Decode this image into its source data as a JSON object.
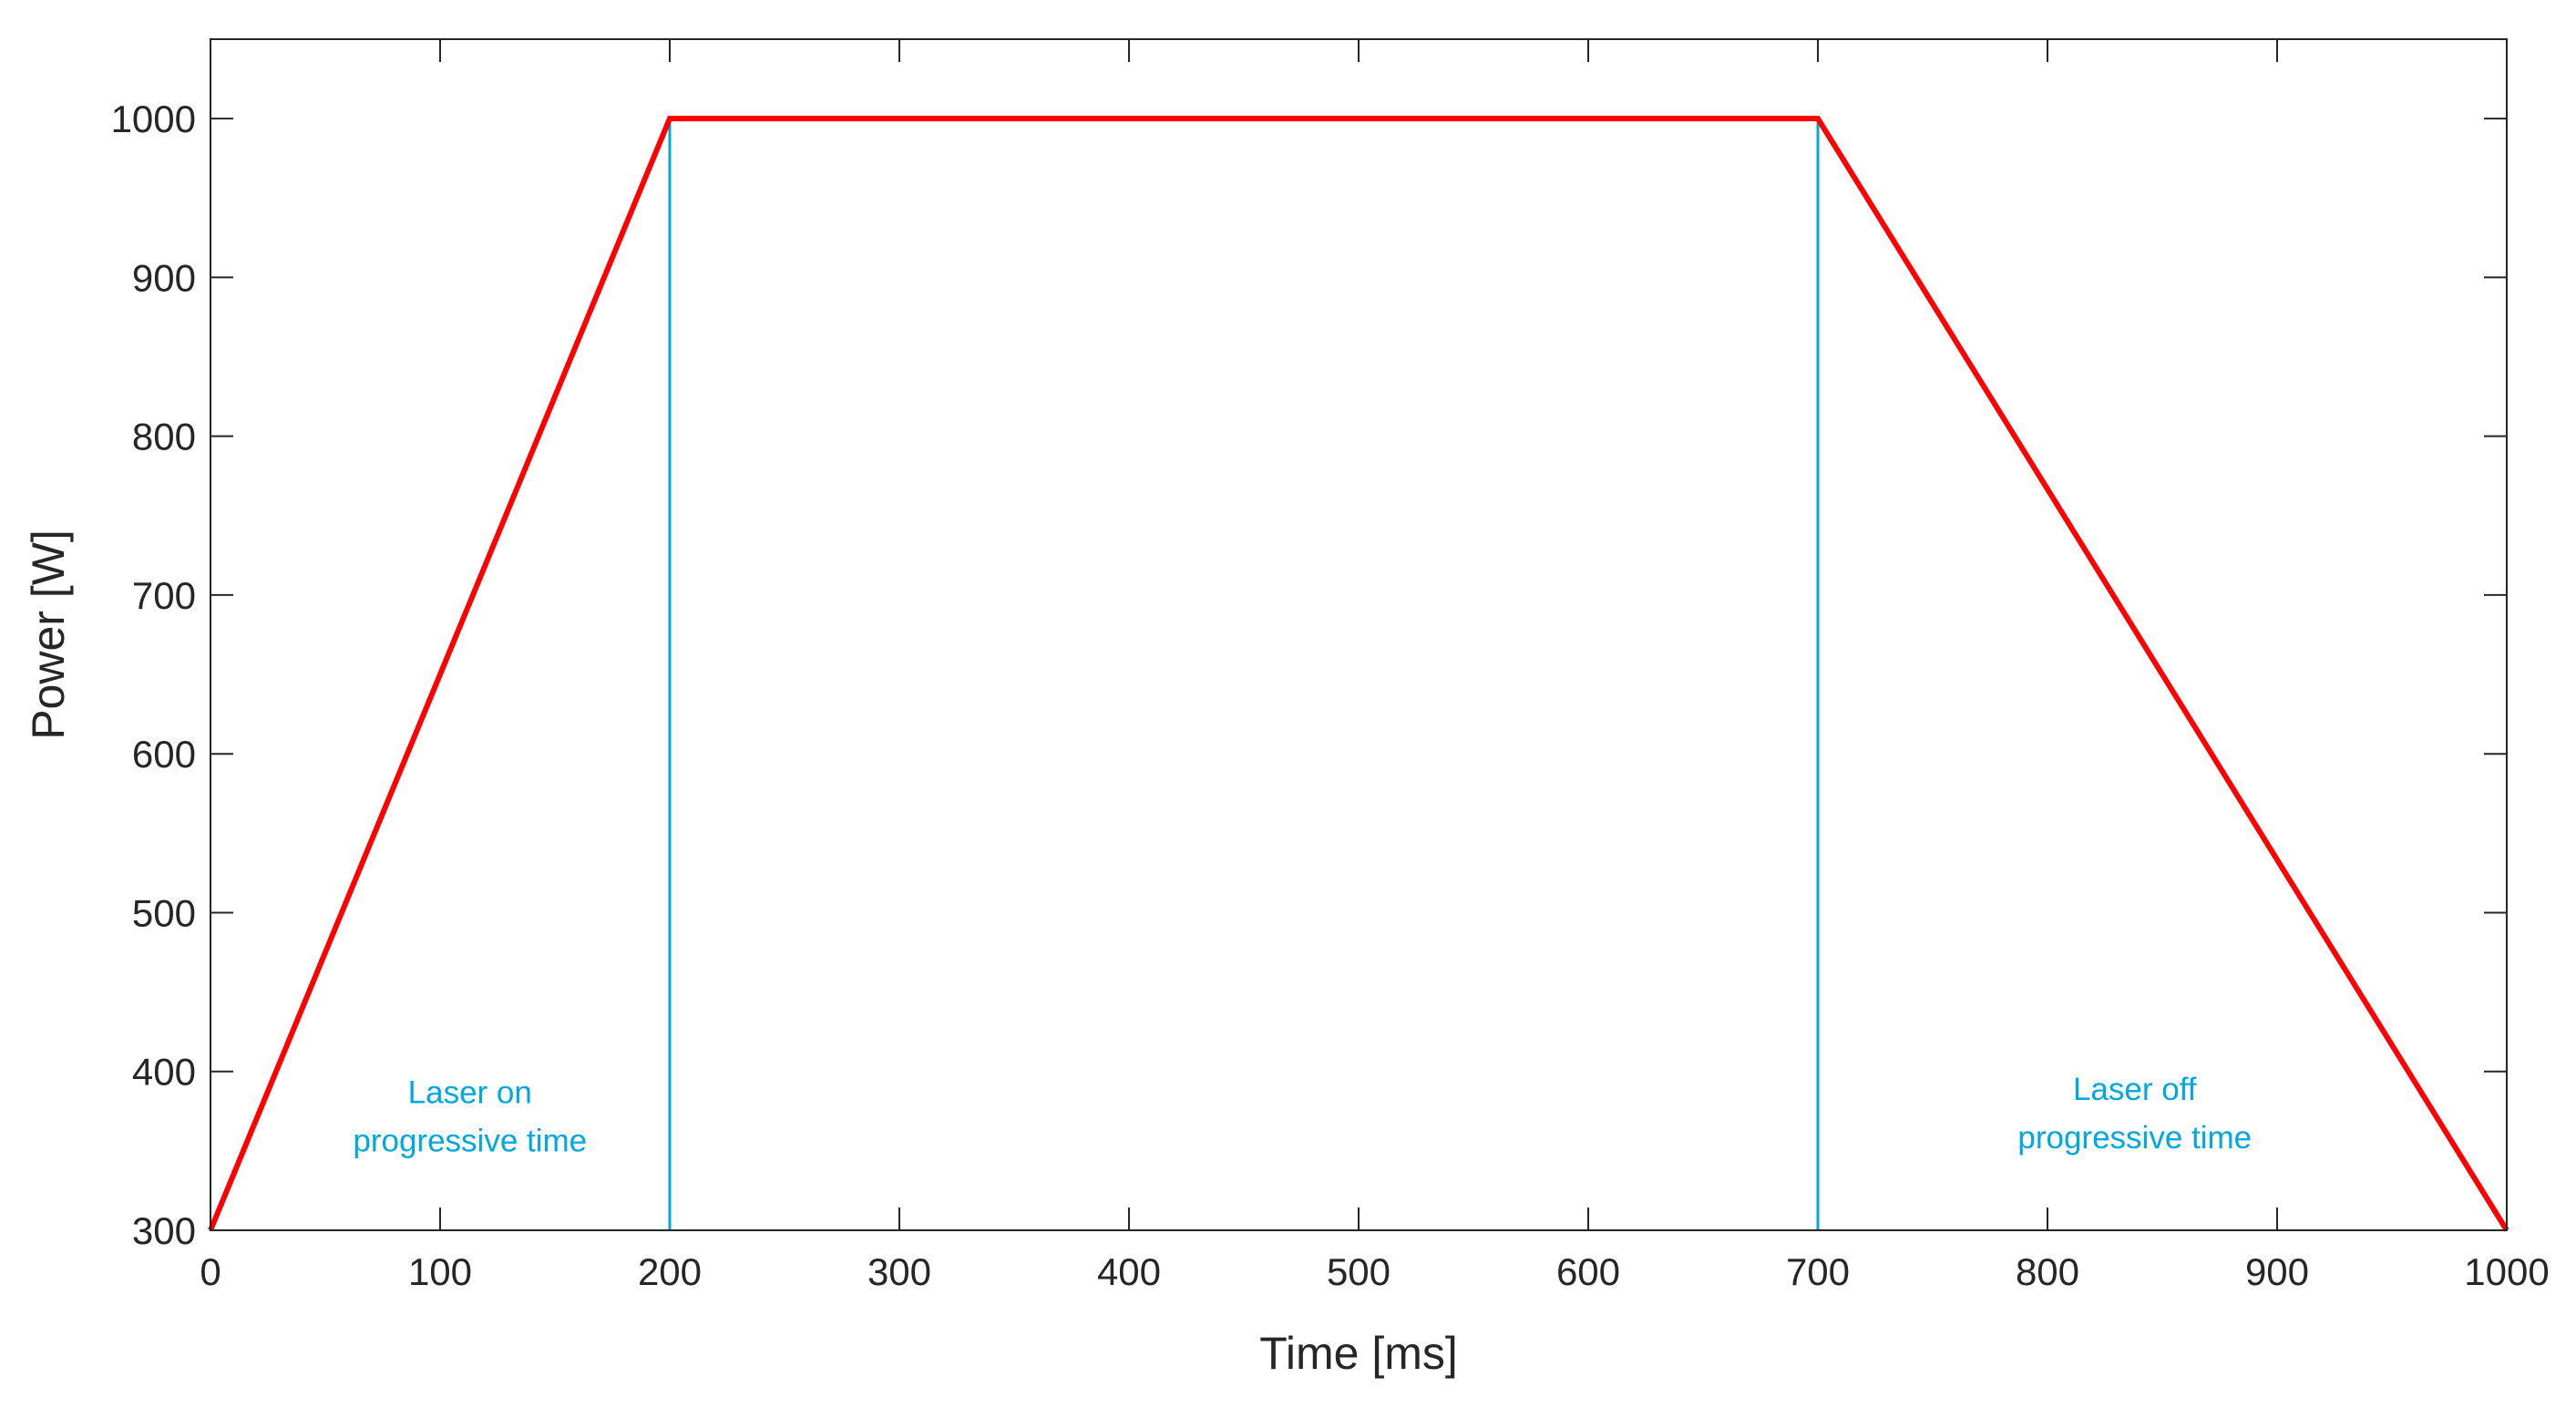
{
  "chart_data": {
    "type": "line",
    "xlabel": "Time [ms]",
    "ylabel": "Power [W]",
    "xlim": [
      0,
      1000
    ],
    "ylim": [
      300,
      1050
    ],
    "xticks": [
      0,
      100,
      200,
      300,
      400,
      500,
      600,
      700,
      800,
      900,
      1000
    ],
    "yticks": [
      300,
      400,
      500,
      600,
      700,
      800,
      900,
      1000
    ],
    "xtick_labels": [
      "0",
      "100",
      "200",
      "300",
      "400",
      "500",
      "600",
      "700",
      "800",
      "900",
      "1000"
    ],
    "ytick_labels": [
      "300",
      "400",
      "500",
      "600",
      "700",
      "800",
      "900",
      "1000"
    ],
    "grid": false,
    "series": [
      {
        "x": [
          0,
          200,
          700,
          1000
        ],
        "y": [
          300,
          1000,
          1000,
          300
        ],
        "color": "#ff0000"
      }
    ],
    "vlines": [
      {
        "x": 200,
        "y": [
          300,
          1000
        ],
        "color": "#00a8e0"
      },
      {
        "x": 700,
        "y": [
          300,
          1000
        ],
        "color": "#00a8e0"
      }
    ],
    "annotations": [
      {
        "lines": [
          "Laser on",
          "progressive time"
        ],
        "x": 113,
        "y": 380,
        "color": "#00a8e0"
      },
      {
        "lines": [
          "Laser off",
          "progressive time"
        ],
        "x": 838,
        "y": 382,
        "color": "#00a8e0"
      }
    ]
  }
}
